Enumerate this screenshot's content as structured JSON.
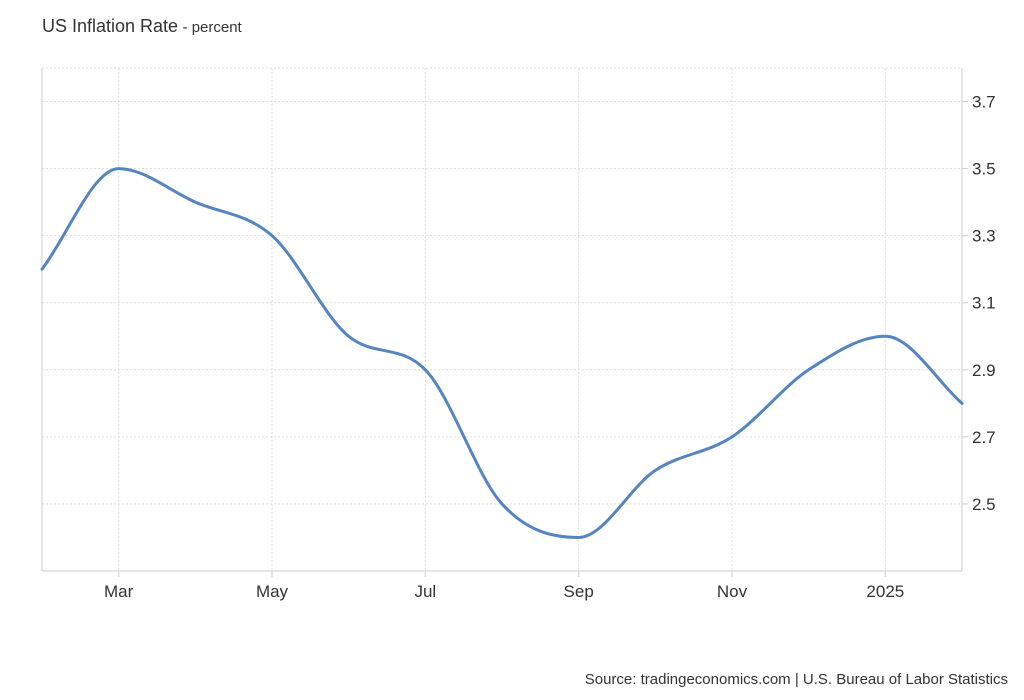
{
  "header": {
    "title": "US Inflation Rate",
    "subtitle": "- percent"
  },
  "footer": {
    "source": "Source: tradingeconomics.com | U.S. Bureau of Labor Statistics"
  },
  "chart_data": {
    "type": "line",
    "title": "US Inflation Rate",
    "subtitle": "- percent",
    "x": [
      "2024-02",
      "2024-03",
      "2024-04",
      "2024-05",
      "2024-06",
      "2024-07",
      "2024-08",
      "2024-09",
      "2024-10",
      "2024-11",
      "2024-12",
      "2025-01",
      "2025-02"
    ],
    "series": [
      {
        "values": [
          3.2,
          3.5,
          3.4,
          3.3,
          3.0,
          2.9,
          2.5,
          2.4,
          2.6,
          2.7,
          2.9,
          3.0,
          2.8
        ]
      }
    ],
    "x_ticks": [
      {
        "at": "2024-03",
        "label": "Mar"
      },
      {
        "at": "2024-05",
        "label": "May"
      },
      {
        "at": "2024-07",
        "label": "Jul"
      },
      {
        "at": "2024-09",
        "label": "Sep"
      },
      {
        "at": "2024-11",
        "label": "Nov"
      },
      {
        "at": "2025-01",
        "label": "2025"
      }
    ],
    "y_ticks": [
      2.5,
      2.7,
      2.9,
      3.1,
      3.3,
      3.5,
      3.7
    ],
    "ylim": [
      2.3,
      3.8
    ],
    "xlim": [
      "2024-02",
      "2025-02"
    ],
    "y_axis_side": "right",
    "grid": true,
    "line_color": "#5585c0",
    "grid_color": "#dddddd",
    "axis_color": "#cccccc"
  }
}
